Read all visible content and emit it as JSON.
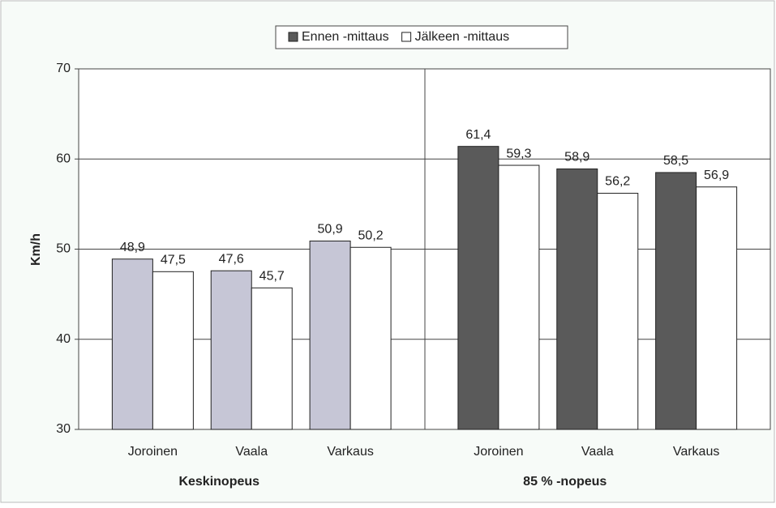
{
  "chart_data": {
    "type": "bar",
    "ylabel": "Km/h",
    "categories": [
      "Joroinen",
      "Vaala",
      "Varkaus",
      "Joroinen",
      "Vaala",
      "Varkaus"
    ],
    "groups": [
      "Keskinopeus",
      "85 % -nopeus"
    ],
    "series": [
      {
        "name": "Ennen -mittaus",
        "color": "#5a5a5a",
        "colors": [
          "#c6c6d6",
          "#c6c6d6",
          "#c6c6d6",
          "#5a5a5a",
          "#5a5a5a",
          "#5a5a5a"
        ],
        "values": [
          48.9,
          47.6,
          50.9,
          61.4,
          58.9,
          58.5
        ],
        "value_labels": [
          "48,9",
          "47,6",
          "50,9",
          "61,4",
          "58,9",
          "58,5"
        ]
      },
      {
        "name": "Jälkeen -mittaus",
        "color": "#ffffff",
        "values": [
          47.5,
          45.7,
          50.2,
          59.3,
          56.2,
          56.9
        ],
        "value_labels": [
          "47,5",
          "45,7",
          "50,2",
          "59,3",
          "56,2",
          "56,9"
        ]
      }
    ],
    "ylim": [
      30,
      70
    ],
    "yticks": [
      30,
      40,
      50,
      60,
      70
    ],
    "grid": true
  }
}
